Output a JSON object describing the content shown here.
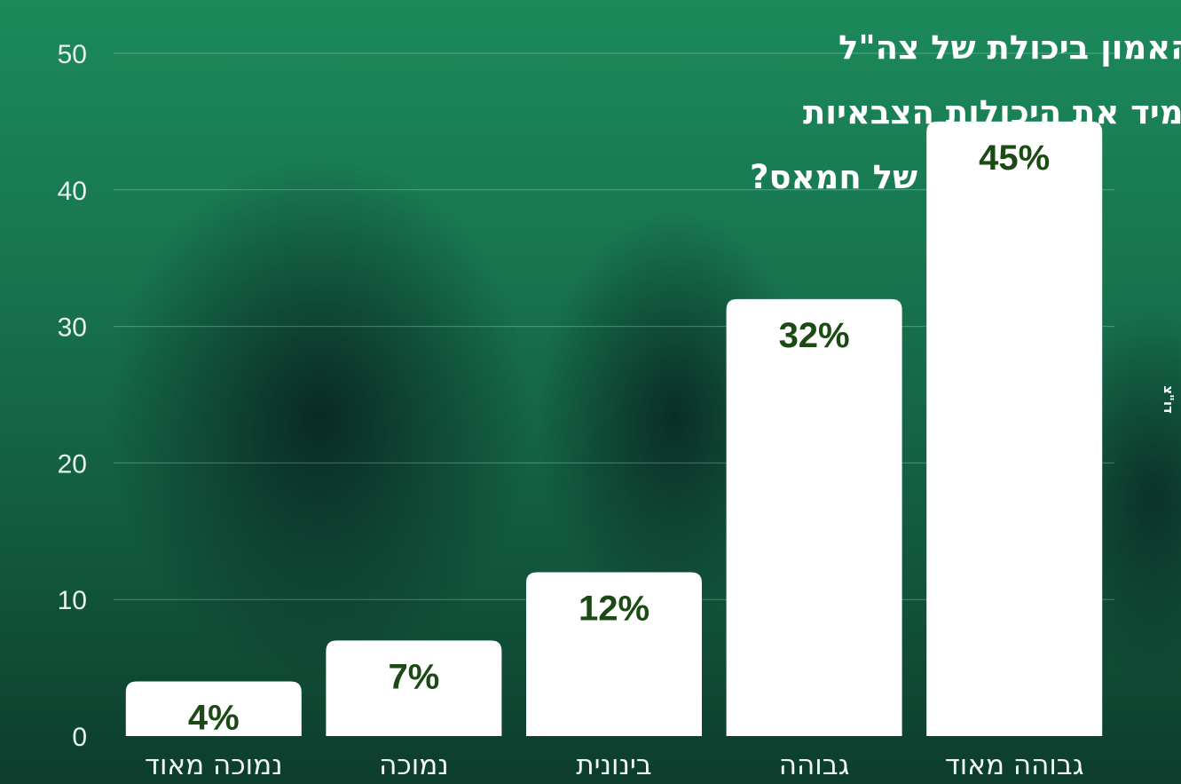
{
  "chart_data": {
    "type": "bar",
    "title_lines": [
      "מהי מידת האמון ביכולת של צה\"ל",
      "להשמיד את היכולות הצבאיות",
      "והשלטוניות של חמאס?"
    ],
    "categories": [
      "נמוכה מאוד",
      "נמוכה",
      "בינונית",
      "גבוהה",
      "גבוהה מאוד"
    ],
    "values": [
      4,
      7,
      12,
      32,
      45
    ],
    "data_labels": [
      "4%",
      "7%",
      "12%",
      "32%",
      "45%"
    ],
    "ylim": [
      0,
      50
    ],
    "yticks": [
      "0",
      "10",
      "20",
      "30",
      "40",
      "50"
    ],
    "grid": true,
    "bar_color": "#ffffff",
    "label_color": "#1b4a14",
    "credit": "דו\"צ"
  }
}
